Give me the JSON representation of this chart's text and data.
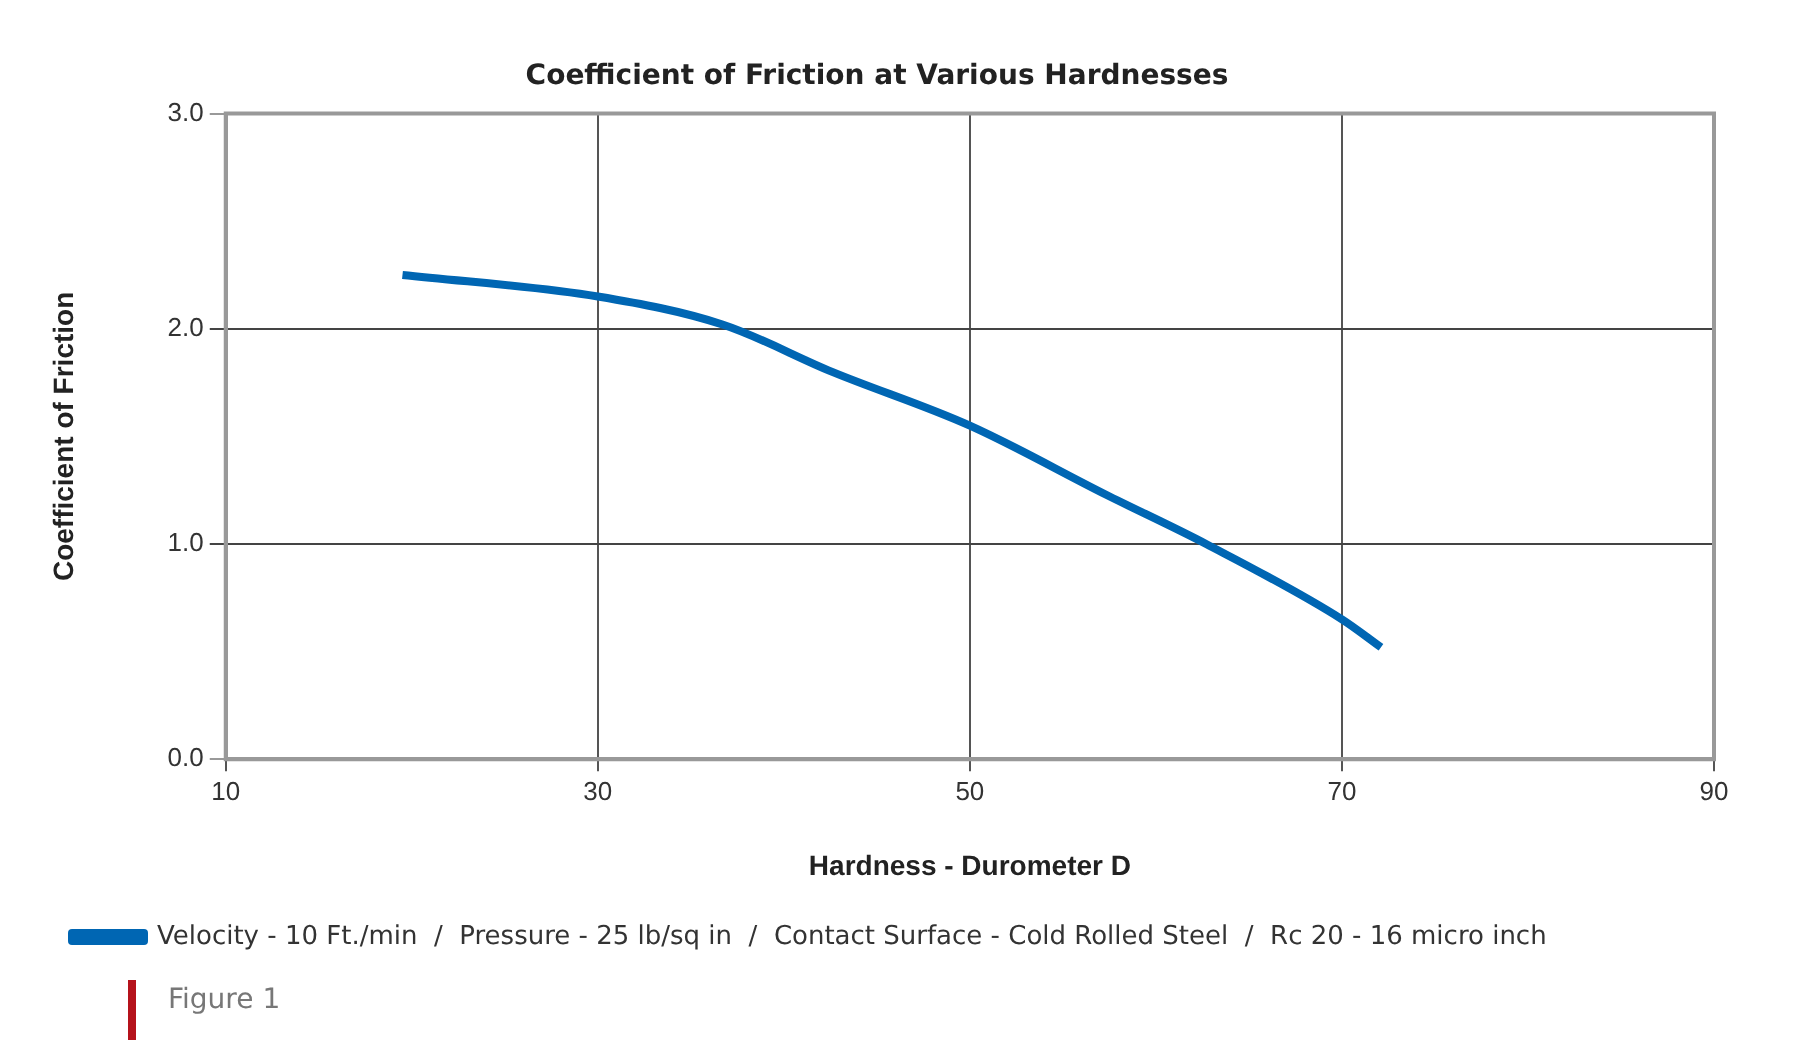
{
  "chart_data": {
    "type": "line",
    "title": "Coefficient of Friction at Various Hardnesses",
    "xlabel": "Hardness - Durometer D",
    "ylabel": "Coefficient of Friction",
    "xlim": [
      10,
      90
    ],
    "xticks": [
      10,
      30,
      50,
      70,
      90
    ],
    "ylim": [
      0,
      3
    ],
    "yticks": [
      {
        "value": 0,
        "label": "0.0"
      },
      {
        "value": 1,
        "label": "1.0"
      },
      {
        "value": 2,
        "label": "2.0"
      },
      {
        "value": 3,
        "label": "3.0"
      }
    ],
    "x": [
      19.5,
      30,
      36.7,
      42.6,
      50,
      57.3,
      62.7,
      70,
      72.1
    ],
    "series": [
      {
        "name": "Velocity - 10 Ft./min  /  Pressure - 25 lb/sq in  /  Contact Surface - Cold Rolled Steel  /  Rc 20 - 16 micro inch",
        "color": "#0066b3",
        "values": [
          2.25,
          2.15,
          2.02,
          1.8,
          1.55,
          1.23,
          1.0,
          0.65,
          0.52
        ]
      }
    ],
    "grid": true,
    "legend": "bottom",
    "marker": "none",
    "line_style": "solid",
    "annotations": [
      "Figure 1"
    ]
  }
}
